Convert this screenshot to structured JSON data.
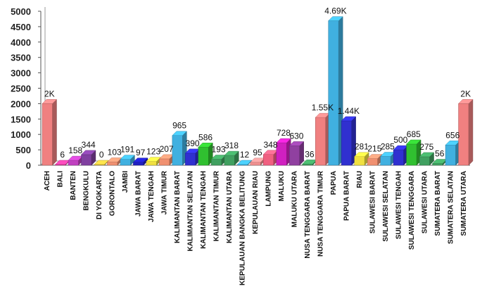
{
  "chart_data": {
    "type": "bar",
    "style": "3d",
    "categories": [
      "ACEH",
      "BALI",
      "BANTEN",
      "BENGKULU",
      "DI YOGKARTA",
      "GORONTALO",
      "JAMBI",
      "JAWA BARAT",
      "JAWA TENGAH",
      "JAWA TIMUR",
      "KALIMANTAN BARAT",
      "KALIMANTAN SELATAN",
      "KALIMANTAN TENGAH",
      "KALIMANTAN TIMUR",
      "KALIMANTAN UTARA",
      "KEPULAUAN BANGKA BELITUNG",
      "KEPULAUAN RIAU",
      "LAMPUNG",
      "MALUKU",
      "MALUKU UTARA",
      "NUSA TENGGARA BARAT",
      "NUSA TENGGARA TIMUR",
      "PAPUA",
      "PAPUA BARAT",
      "RIAU",
      "SULAWESI BARAT",
      "SULAWESI SELATAN",
      "SULAWESI TENGAH",
      "SULAWESI TENGGARA",
      "SULAWESI UTARA",
      "SUMATERA BARAT",
      "SUMATERA SELATAN",
      "SUMATERA UTARA"
    ],
    "values": [
      2000,
      6,
      158,
      344,
      0,
      103,
      191,
      97,
      123,
      207,
      965,
      390,
      586,
      193,
      318,
      12,
      95,
      348,
      728,
      630,
      36,
      1550,
      4690,
      1440,
      281,
      215,
      285,
      500,
      685,
      275,
      56,
      656,
      2000
    ],
    "data_labels": [
      "2K",
      "6",
      "158",
      "344",
      "0",
      "103",
      "191",
      "97",
      "123",
      "207",
      "965",
      "390",
      "586",
      "193",
      "318",
      "12",
      "95",
      "348",
      "728",
      "630",
      "36",
      "1.55K",
      "4.69K",
      "1.44K",
      "281",
      "215",
      "285",
      "500",
      "685",
      "275",
      "56",
      "656",
      "2K"
    ],
    "colors": [
      "#f08080",
      "#e040a0",
      "#c040c0",
      "#8040a0",
      "#e0c040",
      "#f09070",
      "#40b0e0",
      "#2020c0",
      "#f0e040",
      "#f09070",
      "#40b0e0",
      "#3030d0",
      "#30c030",
      "#40a060",
      "#40a060",
      "#40b0e0",
      "#f09090",
      "#f06080",
      "#d020c0",
      "#9040a0",
      "#40a060",
      "#f08080",
      "#40b0e0",
      "#3030d0",
      "#f0e040",
      "#f09070",
      "#40b0e0",
      "#3030d0",
      "#30c030",
      "#40a060",
      "#40a060",
      "#40b0e0",
      "#f08080"
    ],
    "yticks": [
      "0",
      "500",
      "1000",
      "1500",
      "2000",
      "2500",
      "3000",
      "3500",
      "4000",
      "4500",
      "5000"
    ],
    "ylim": [
      0,
      5000
    ],
    "grid": false,
    "legend": "none",
    "title": "",
    "xlabel": "",
    "ylabel": ""
  }
}
